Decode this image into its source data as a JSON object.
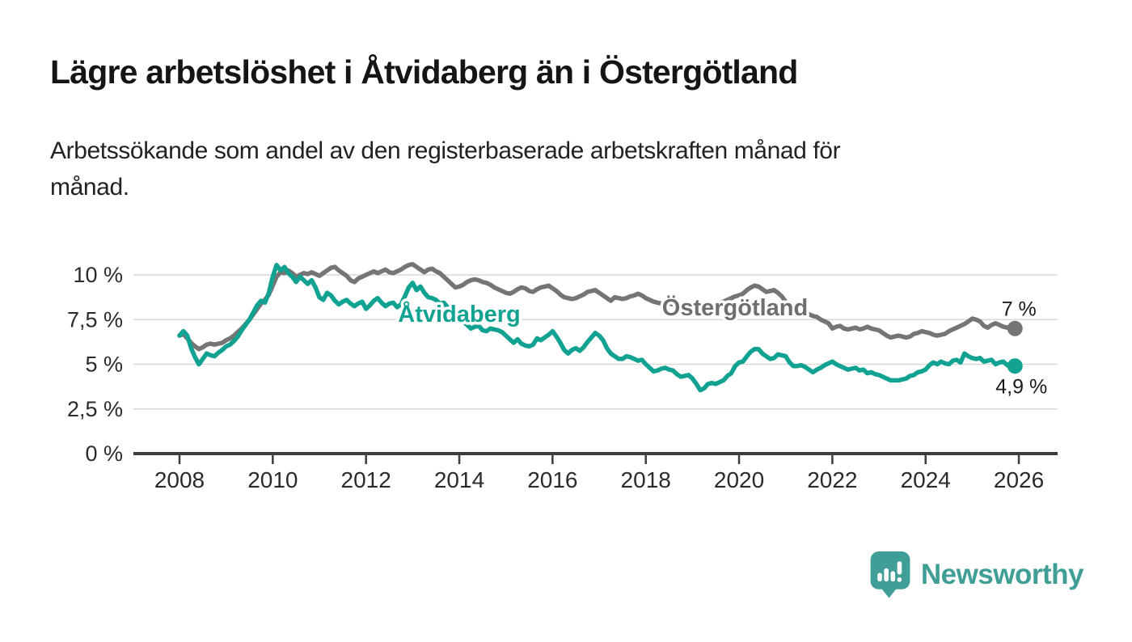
{
  "header": {
    "title": "Lägre arbetslöshet i Åtvidaberg än i Östergötland",
    "subtitle_line1": "Arbetssökande som andel av den registerbaserade arbetskraften månad för",
    "subtitle_line2": "månad."
  },
  "chart_data": {
    "type": "line",
    "title": "Lägre arbetslöshet i Åtvidaberg än i Östergötland",
    "subtitle": "Arbetssökande som andel av den registerbaserade arbetskraften månad för månad.",
    "xlabel": "",
    "ylabel": "",
    "xlim": [
      2008,
      2026
    ],
    "ylim": [
      0,
      10
    ],
    "grid": true,
    "legend_position": "inline-labels",
    "x_ticks": [
      2008,
      2010,
      2012,
      2014,
      2016,
      2018,
      2020,
      2022,
      2024,
      2026
    ],
    "y_ticks": [
      {
        "value": 0,
        "label": "0 %"
      },
      {
        "value": 2.5,
        "label": "2,5 %"
      },
      {
        "value": 5,
        "label": "5 %"
      },
      {
        "value": 7.5,
        "label": "7,5 %"
      },
      {
        "value": 10,
        "label": "10 %"
      }
    ],
    "series": [
      {
        "name": "Östergötland",
        "color": "#757575",
        "end_label": "7 %",
        "end_value": 7.0,
        "x_start": 2008.0,
        "x_step": 0.0833333,
        "values": [
          6.6,
          6.7,
          6.45,
          6.2,
          6.0,
          5.85,
          5.95,
          6.1,
          6.15,
          6.1,
          6.15,
          6.2,
          6.35,
          6.45,
          6.6,
          6.8,
          7.0,
          7.25,
          7.5,
          7.8,
          8.1,
          8.4,
          8.6,
          8.9,
          9.4,
          9.9,
          10.15,
          10.1,
          10.25,
          10.1,
          9.9,
          10.0,
          10.1,
          10.05,
          10.15,
          10.05,
          9.95,
          10.1,
          10.25,
          10.4,
          10.45,
          10.25,
          10.1,
          9.95,
          9.7,
          9.6,
          9.8,
          9.9,
          10.0,
          10.1,
          10.2,
          10.1,
          10.2,
          10.3,
          10.15,
          10.1,
          10.2,
          10.3,
          10.45,
          10.55,
          10.6,
          10.45,
          10.3,
          10.15,
          10.3,
          10.35,
          10.2,
          10.1,
          9.9,
          9.7,
          9.5,
          9.3,
          9.35,
          9.45,
          9.6,
          9.7,
          9.75,
          9.7,
          9.6,
          9.55,
          9.45,
          9.3,
          9.2,
          9.1,
          9.0,
          8.95,
          9.05,
          9.2,
          9.3,
          9.25,
          9.1,
          9.05,
          9.2,
          9.3,
          9.35,
          9.4,
          9.25,
          9.1,
          8.9,
          8.75,
          8.7,
          8.65,
          8.7,
          8.8,
          8.9,
          9.05,
          9.1,
          9.15,
          9.0,
          8.85,
          8.7,
          8.55,
          8.75,
          8.7,
          8.65,
          8.7,
          8.8,
          8.85,
          8.95,
          8.85,
          8.7,
          8.6,
          8.5,
          8.45,
          8.4,
          8.45,
          8.4,
          8.35,
          8.3,
          8.25,
          8.3,
          8.35,
          8.3,
          8.25,
          8.2,
          8.25,
          8.3,
          8.35,
          8.4,
          8.45,
          8.5,
          8.6,
          8.7,
          8.8,
          8.85,
          8.95,
          9.15,
          9.3,
          9.4,
          9.35,
          9.2,
          9.05,
          9.1,
          9.15,
          9.0,
          8.8,
          8.5,
          8.3,
          8.15,
          8.0,
          7.9,
          7.85,
          7.8,
          7.7,
          7.65,
          7.5,
          7.4,
          7.3,
          7.0,
          7.1,
          7.15,
          7.0,
          6.95,
          7.0,
          7.05,
          6.95,
          7.0,
          7.1,
          7.0,
          6.95,
          6.9,
          6.75,
          6.6,
          6.5,
          6.55,
          6.6,
          6.55,
          6.5,
          6.55,
          6.7,
          6.75,
          6.85,
          6.8,
          6.75,
          6.65,
          6.6,
          6.65,
          6.7,
          6.85,
          6.95,
          7.05,
          7.15,
          7.25,
          7.4,
          7.55,
          7.5,
          7.4,
          7.15,
          7.05,
          7.2,
          7.3,
          7.2,
          7.1,
          7.05,
          7.1,
          7.0
        ]
      },
      {
        "name": "Åtvidaberg",
        "color": "#12a292",
        "end_label": "4,9 %",
        "end_value": 4.9,
        "x_start": 2008.0,
        "x_step": 0.0833333,
        "values": [
          6.6,
          6.85,
          6.6,
          5.9,
          5.4,
          5.0,
          5.3,
          5.6,
          5.5,
          5.45,
          5.65,
          5.8,
          6.0,
          6.1,
          6.3,
          6.55,
          6.9,
          7.2,
          7.5,
          7.9,
          8.3,
          8.55,
          8.45,
          9.0,
          9.9,
          10.55,
          10.25,
          10.45,
          10.1,
          9.9,
          9.6,
          9.9,
          9.7,
          9.5,
          9.7,
          9.3,
          8.75,
          8.6,
          9.0,
          8.85,
          8.55,
          8.35,
          8.5,
          8.6,
          8.4,
          8.25,
          8.4,
          8.5,
          8.1,
          8.3,
          8.55,
          8.7,
          8.45,
          8.25,
          8.4,
          8.45,
          8.2,
          8.35,
          8.8,
          9.3,
          9.55,
          9.15,
          9.35,
          9.0,
          8.75,
          8.7,
          8.6,
          8.4,
          8.45,
          8.2,
          8.0,
          7.8,
          7.6,
          7.4,
          7.2,
          7.0,
          7.1,
          7.15,
          6.9,
          6.85,
          7.0,
          6.95,
          6.9,
          6.8,
          6.6,
          6.4,
          6.2,
          6.4,
          6.15,
          6.05,
          6.0,
          6.1,
          6.45,
          6.35,
          6.5,
          6.65,
          6.85,
          6.55,
          6.2,
          5.8,
          5.6,
          5.8,
          5.9,
          5.75,
          5.95,
          6.25,
          6.5,
          6.75,
          6.6,
          6.35,
          5.9,
          5.6,
          5.45,
          5.3,
          5.3,
          5.45,
          5.4,
          5.3,
          5.2,
          5.25,
          5.0,
          4.8,
          4.6,
          4.65,
          4.75,
          4.8,
          4.7,
          4.65,
          4.45,
          4.3,
          4.35,
          4.4,
          4.2,
          3.9,
          3.55,
          3.65,
          3.9,
          3.95,
          3.9,
          4.0,
          4.1,
          4.35,
          4.5,
          4.9,
          5.1,
          5.15,
          5.45,
          5.7,
          5.85,
          5.85,
          5.6,
          5.45,
          5.3,
          5.35,
          5.55,
          5.5,
          5.45,
          5.1,
          4.9,
          4.9,
          4.95,
          4.85,
          4.7,
          4.55,
          4.7,
          4.8,
          4.95,
          5.05,
          5.15,
          5.0,
          4.9,
          4.8,
          4.7,
          4.75,
          4.8,
          4.65,
          4.7,
          4.5,
          4.55,
          4.45,
          4.4,
          4.3,
          4.2,
          4.1,
          4.1,
          4.1,
          4.15,
          4.2,
          4.35,
          4.4,
          4.55,
          4.6,
          4.7,
          4.95,
          5.1,
          5.0,
          5.15,
          5.05,
          5.0,
          5.2,
          5.25,
          5.1,
          5.6,
          5.45,
          5.35,
          5.3,
          5.35,
          5.15,
          5.2,
          5.25,
          5.0,
          5.1,
          5.15,
          4.95,
          5.05,
          4.9
        ]
      }
    ]
  },
  "style": {
    "accent_teal": "#12a292",
    "line_gray": "#757575",
    "label_gray": "#6e6e6e",
    "text_dark": "#1a1a1a",
    "gridline": "#d9d9d9",
    "axis": "#3d3d3d",
    "logo_teal": "#3f9e96"
  },
  "footer": {
    "brand": "Newsworthy"
  }
}
